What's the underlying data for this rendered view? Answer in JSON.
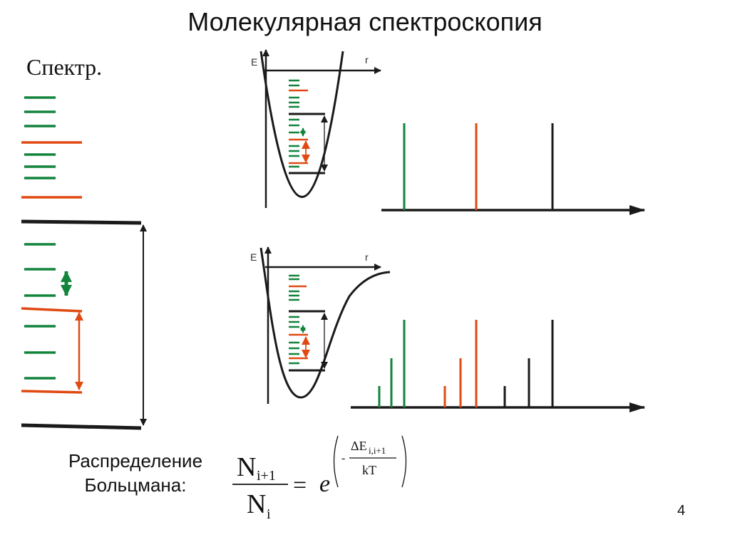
{
  "slide": {
    "title": "Молекулярная спектроскопия",
    "spectr_label": "Спектр.",
    "page_number": "4"
  },
  "diagrams": {
    "axis_e": "E",
    "axis_r": "r"
  },
  "boltzmann": {
    "label_line1": "Распределение",
    "label_line2": "Больцмана:",
    "formula": {
      "numerator": "N",
      "numerator_sub": "i+1",
      "denominator": "N",
      "denominator_sub": "i",
      "equals": "=",
      "base": "e",
      "exp_minus": "-",
      "exp_delta": "ΔE",
      "exp_delta_sub": "i,i+1",
      "exp_denominator": "kT"
    }
  },
  "colors": {
    "rotational": "#12843c",
    "vibrational": "#e04a12",
    "electronic": "#1a1a1a"
  }
}
